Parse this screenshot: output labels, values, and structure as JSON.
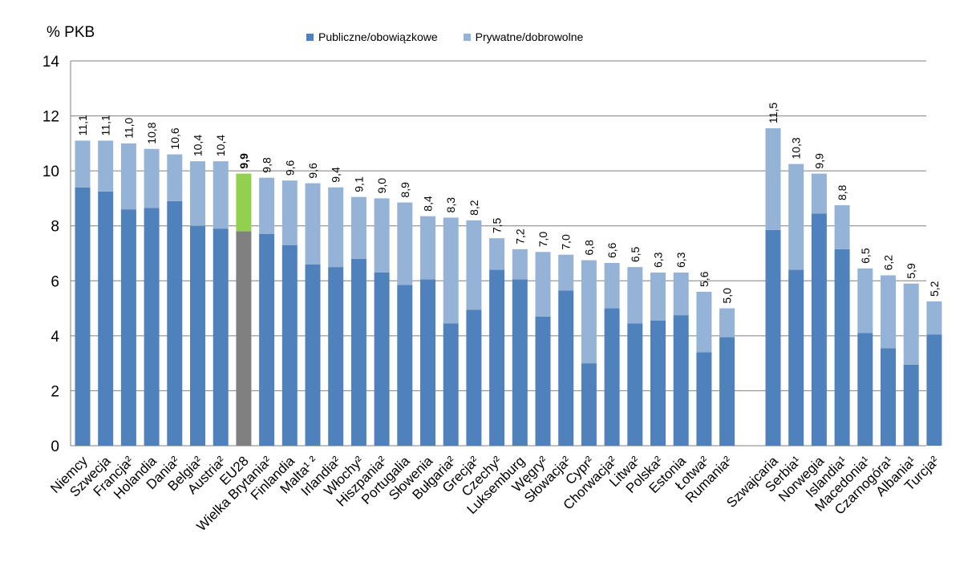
{
  "chart_data": {
    "type": "bar",
    "stacked": true,
    "ylabel": "% PKB",
    "ylim": [
      0,
      14
    ],
    "yticks": [
      0,
      2,
      4,
      6,
      8,
      10,
      12,
      14
    ],
    "grid": true,
    "legend_position": "top-center",
    "colors": {
      "public": "#4F81BD",
      "private": "#95B3D7",
      "eu_public": "#808080",
      "eu_private": "#92D050",
      "grid": "#7f7f7f"
    },
    "series": [
      {
        "name": "Publiczne/obowiązkowe",
        "key": "public"
      },
      {
        "name": "Prywatne/dobrowolne",
        "key": "private"
      }
    ],
    "groups": [
      {
        "items": [
          {
            "category": "Niemcy",
            "public": 9.4,
            "total": 11.1,
            "label": "11,1"
          },
          {
            "category": "Szwecja",
            "public": 9.25,
            "total": 11.1,
            "label": "11,1"
          },
          {
            "category": "Francja²",
            "public": 8.6,
            "total": 11.0,
            "label": "11,0"
          },
          {
            "category": "Holandia",
            "public": 8.65,
            "total": 10.8,
            "label": "10,8"
          },
          {
            "category": "Dania²",
            "public": 8.9,
            "total": 10.6,
            "label": "10,6"
          },
          {
            "category": "Belgia²",
            "public": 8.0,
            "total": 10.35,
            "label": "10,4"
          },
          {
            "category": "Austria²",
            "public": 7.9,
            "total": 10.35,
            "label": "10,4"
          },
          {
            "category": "EU28",
            "public": 7.8,
            "total": 9.9,
            "label": "9,9",
            "highlight": true
          },
          {
            "category": "Wielka Brytania²",
            "public": 7.7,
            "total": 9.75,
            "label": "9,8"
          },
          {
            "category": "Finlandia",
            "public": 7.3,
            "total": 9.65,
            "label": "9,6"
          },
          {
            "category": "Malta¹ ²",
            "public": 6.6,
            "total": 9.55,
            "label": "9,6"
          },
          {
            "category": "Irlandia²",
            "public": 6.5,
            "total": 9.4,
            "label": "9,4"
          },
          {
            "category": "Włochy²",
            "public": 6.8,
            "total": 9.05,
            "label": "9,1"
          },
          {
            "category": "Hiszpania²",
            "public": 6.3,
            "total": 9.0,
            "label": "9,0"
          },
          {
            "category": "Portugalia",
            "public": 5.85,
            "total": 8.85,
            "label": "8,9"
          },
          {
            "category": "Słowenia",
            "public": 6.05,
            "total": 8.35,
            "label": "8,4"
          },
          {
            "category": "Bułgaria²",
            "public": 4.45,
            "total": 8.3,
            "label": "8,3"
          },
          {
            "category": "Grecja²",
            "public": 4.95,
            "total": 8.2,
            "label": "8,2"
          },
          {
            "category": "Czechy²",
            "public": 6.4,
            "total": 7.55,
            "label": "7,5"
          },
          {
            "category": "Luksemburg",
            "public": 6.05,
            "total": 7.15,
            "label": "7,2"
          },
          {
            "category": "Węgry²",
            "public": 4.7,
            "total": 7.05,
            "label": "7,0"
          },
          {
            "category": "Słowacja²",
            "public": 5.65,
            "total": 6.95,
            "label": "7,0"
          },
          {
            "category": "Cypr²",
            "public": 3.0,
            "total": 6.75,
            "label": "6,8"
          },
          {
            "category": "Chorwacja²",
            "public": 5.0,
            "total": 6.65,
            "label": "6,6"
          },
          {
            "category": "Litwa²",
            "public": 4.45,
            "total": 6.5,
            "label": "6,5"
          },
          {
            "category": "Polska²",
            "public": 4.55,
            "total": 6.3,
            "label": "6,3"
          },
          {
            "category": "Estonia",
            "public": 4.75,
            "total": 6.3,
            "label": "6,3"
          },
          {
            "category": "Łotwa²",
            "public": 3.4,
            "total": 5.6,
            "label": "5,6"
          },
          {
            "category": "Rumania²",
            "public": 3.95,
            "total": 5.0,
            "label": "5,0"
          }
        ]
      },
      {
        "items": [
          {
            "category": "Szwajcaria",
            "public": 7.85,
            "total": 11.55,
            "label": "11,5"
          },
          {
            "category": "Serbia¹",
            "public": 6.4,
            "total": 10.25,
            "label": "10,3"
          },
          {
            "category": "Norwegia",
            "public": 8.45,
            "total": 9.9,
            "label": "9,9"
          },
          {
            "category": "Islandia¹",
            "public": 7.15,
            "total": 8.75,
            "label": "8,8"
          },
          {
            "category": "Macedonia¹",
            "public": 4.1,
            "total": 6.45,
            "label": "6,5"
          },
          {
            "category": "Czarnogóra¹",
            "public": 3.55,
            "total": 6.2,
            "label": "6,2"
          },
          {
            "category": "Albania¹",
            "public": 2.95,
            "total": 5.9,
            "label": "5,9"
          },
          {
            "category": "Turcja²",
            "public": 4.05,
            "total": 5.25,
            "label": "5,2"
          }
        ]
      }
    ]
  }
}
